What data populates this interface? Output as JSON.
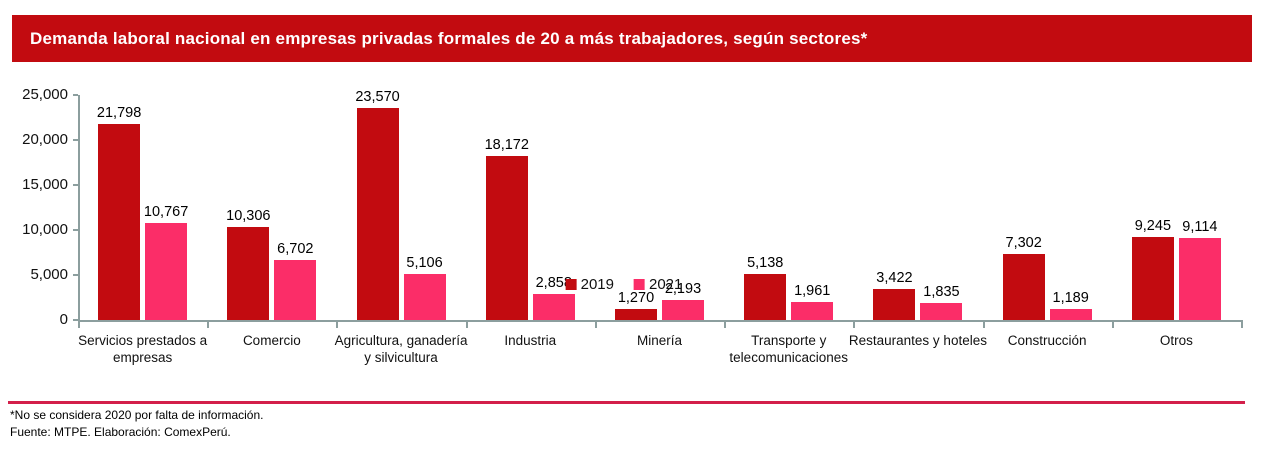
{
  "header": {
    "title": "Demanda laboral nacional en empresas privadas formales de 20 a más trabajadores, según sectores*",
    "background": "#C20B10",
    "text_color": "#FFFFFF"
  },
  "chart_data": {
    "type": "bar",
    "title": "Demanda laboral nacional en empresas privadas formales de 20 a más trabajadores, según sectores*",
    "categories": [
      "Servicios prestados a empresas",
      "Comercio",
      "Agricultura, ganadería y silvicultura",
      "Industria",
      "Minería",
      "Transporte y telecomunicaciones",
      "Restaurantes y hoteles",
      "Construcción",
      "Otros"
    ],
    "series": [
      {
        "name": "2019",
        "color": "#C20B10",
        "values": [
          21798,
          10306,
          23570,
          18172,
          1270,
          5138,
          3422,
          7302,
          9245
        ]
      },
      {
        "name": "2021",
        "color": "#FB2D68",
        "values": [
          10767,
          6702,
          5106,
          2858,
          2193,
          1961,
          1835,
          1189,
          9114
        ]
      }
    ],
    "xlabel": "",
    "ylabel": "",
    "ylim": [
      0,
      25000
    ],
    "yticks": [
      0,
      5000,
      10000,
      15000,
      20000,
      25000
    ],
    "ytick_labels": [
      "0",
      "5,000",
      "10,000",
      "15,000",
      "20,000",
      "25,000"
    ],
    "grid": false,
    "legend_position": "bottom-center",
    "axis_color": "#8C9E9E"
  },
  "footer": {
    "divider_color": "#D31F4A",
    "note": "*No se considera 2020 por falta de información.",
    "source": "Fuente: MTPE. Elaboración: ComexPerú."
  }
}
